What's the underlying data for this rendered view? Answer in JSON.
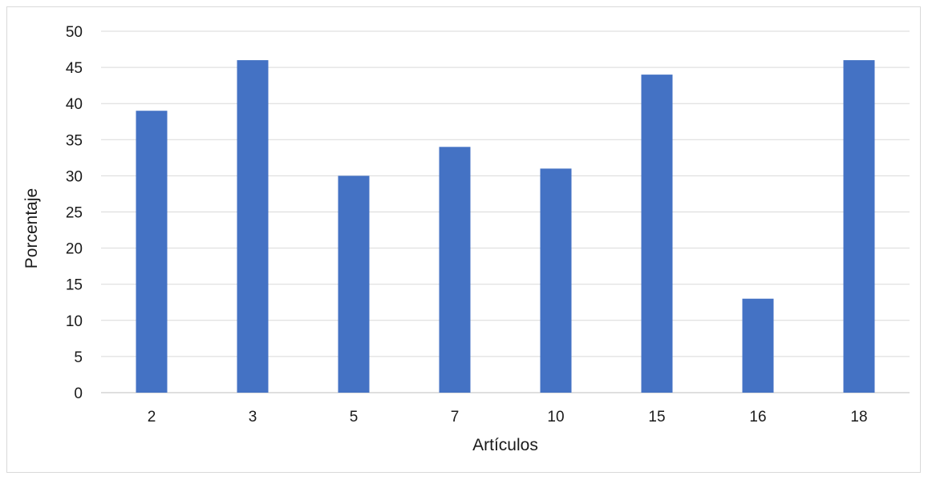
{
  "chart_data": {
    "type": "bar",
    "title": "",
    "xlabel": "Artículos",
    "ylabel": "Porcentaje",
    "categories": [
      "2",
      "3",
      "5",
      "7",
      "10",
      "15",
      "16",
      "18"
    ],
    "series": [
      {
        "values": [
          39,
          46,
          30,
          34,
          31,
          44,
          13,
          46
        ]
      }
    ],
    "ylim": [
      0,
      50
    ],
    "yticks": [
      0,
      5,
      10,
      15,
      20,
      25,
      30,
      35,
      40,
      45,
      50
    ],
    "grid": true,
    "legend": "none",
    "colors": {
      "bar": "#4472c4",
      "grid": "#d9d9d9",
      "axis": "#bfbfbf"
    }
  }
}
